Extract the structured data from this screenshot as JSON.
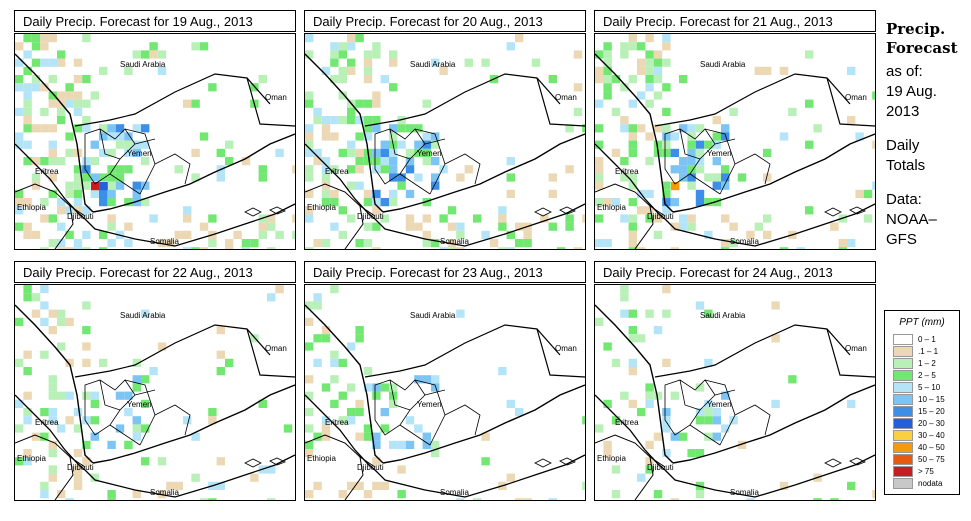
{
  "panels": [
    {
      "title": "Daily Precip. Forecast for  19 Aug., 2013",
      "intensity": 1.0
    },
    {
      "title": "Daily Precip. Forecast for  20 Aug., 2013",
      "intensity": 0.95
    },
    {
      "title": "Daily Precip. Forecast for  21 Aug., 2013",
      "intensity": 0.85
    },
    {
      "title": "Daily Precip. Forecast for  22 Aug., 2013",
      "intensity": 0.55
    },
    {
      "title": "Daily Precip. Forecast for  23 Aug., 2013",
      "intensity": 0.5
    },
    {
      "title": "Daily Precip. Forecast for  24 Aug., 2013",
      "intensity": 0.45
    }
  ],
  "map_labels": {
    "saudi_arabia": "Saudi Arabia",
    "oman": "Oman",
    "yemen": "Yemen",
    "eritrea": "Eritrea",
    "ethiopia": "Ethiopia",
    "djibouti": "Djibouti",
    "somalia": "Somalia"
  },
  "side": {
    "title_line1": "Precip.",
    "title_line2": "Forecast",
    "asof_line1": "as of:",
    "asof_line2": "19 Aug.",
    "asof_line3": "2013",
    "totals_line1": "Daily",
    "totals_line2": "Totals",
    "source_line1": "Data:",
    "source_line2": "NOAA–",
    "source_line3": "GFS"
  },
  "legend": {
    "title": "PPT (mm)",
    "items": [
      {
        "label": "0 – 1",
        "color": "#ffffff"
      },
      {
        "label": ".1 – 1",
        "color": "#ecd8b4"
      },
      {
        "label": "1 – 2",
        "color": "#b8f0b8"
      },
      {
        "label": "2 – 5",
        "color": "#72e872"
      },
      {
        "label": "5 – 10",
        "color": "#b4e4f8"
      },
      {
        "label": "10 – 15",
        "color": "#7cc4f4"
      },
      {
        "label": "15 – 20",
        "color": "#3c8ee6"
      },
      {
        "label": "20 – 30",
        "color": "#2460d8"
      },
      {
        "label": "30 – 40",
        "color": "#f8d040"
      },
      {
        "label": "40 – 50",
        "color": "#f49a10"
      },
      {
        "label": "50 – 75",
        "color": "#e65a10"
      },
      {
        "label": "> 75",
        "color": "#c81e1e"
      },
      {
        "label": "nodata",
        "color": "#c8c8c8"
      }
    ]
  }
}
